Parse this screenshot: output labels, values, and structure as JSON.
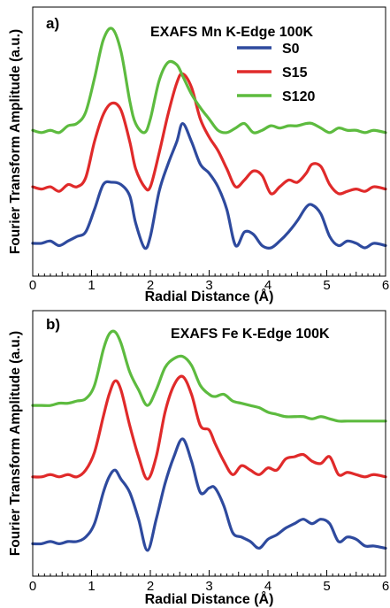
{
  "chart_data": [
    {
      "type": "line",
      "panel_label": "a)",
      "title": "EXAFS Mn K-Edge 100K",
      "xlabel": "Radial Distance (Å)",
      "ylabel": "Fourier Transform Amplitude (a.u.)",
      "xlim": [
        0,
        6
      ],
      "xticks": [
        "0",
        "1",
        "2",
        "3",
        "4",
        "5",
        "6"
      ],
      "ylim": [
        0,
        1
      ],
      "yticks_shown": false,
      "legend": "top-right",
      "colors": {
        "S0": "#2e4a9e",
        "S15": "#e02a2a",
        "S120": "#5dbb3f"
      },
      "series": [
        {
          "name": "S0",
          "x": [
            0,
            0.15,
            0.3,
            0.45,
            0.6,
            0.75,
            0.9,
            1.05,
            1.2,
            1.35,
            1.5,
            1.65,
            1.75,
            1.9,
            2.0,
            2.15,
            2.3,
            2.45,
            2.55,
            2.7,
            2.85,
            3.0,
            3.15,
            3.3,
            3.45,
            3.6,
            3.75,
            3.9,
            4.05,
            4.2,
            4.35,
            4.5,
            4.65,
            4.75,
            4.9,
            5.05,
            5.2,
            5.35,
            5.5,
            5.65,
            5.8,
            6.0
          ],
          "y": [
            0.05,
            0.05,
            0.06,
            0.04,
            0.06,
            0.08,
            0.1,
            0.2,
            0.31,
            0.32,
            0.31,
            0.26,
            0.14,
            0.03,
            0.08,
            0.28,
            0.4,
            0.5,
            0.58,
            0.5,
            0.4,
            0.36,
            0.3,
            0.2,
            0.04,
            0.1,
            0.09,
            0.04,
            0.03,
            0.06,
            0.1,
            0.15,
            0.21,
            0.22,
            0.18,
            0.08,
            0.04,
            0.06,
            0.05,
            0.03,
            0.05,
            0.04
          ]
        },
        {
          "name": "S15",
          "x": [
            0,
            0.15,
            0.3,
            0.45,
            0.6,
            0.75,
            0.9,
            1.05,
            1.2,
            1.35,
            1.5,
            1.65,
            1.75,
            1.9,
            2.0,
            2.15,
            2.3,
            2.45,
            2.55,
            2.7,
            2.85,
            3.0,
            3.15,
            3.3,
            3.45,
            3.6,
            3.75,
            3.9,
            4.05,
            4.2,
            4.35,
            4.5,
            4.65,
            4.75,
            4.9,
            5.05,
            5.2,
            5.35,
            5.5,
            5.65,
            5.8,
            6.0
          ],
          "y": [
            0.3,
            0.29,
            0.3,
            0.28,
            0.31,
            0.3,
            0.34,
            0.5,
            0.62,
            0.67,
            0.64,
            0.5,
            0.38,
            0.3,
            0.3,
            0.45,
            0.62,
            0.76,
            0.8,
            0.74,
            0.6,
            0.52,
            0.46,
            0.38,
            0.3,
            0.33,
            0.37,
            0.35,
            0.27,
            0.3,
            0.33,
            0.32,
            0.36,
            0.4,
            0.39,
            0.31,
            0.27,
            0.28,
            0.29,
            0.28,
            0.3,
            0.29
          ]
        },
        {
          "name": "S120",
          "x": [
            0,
            0.15,
            0.3,
            0.45,
            0.6,
            0.75,
            0.9,
            1.05,
            1.2,
            1.35,
            1.5,
            1.65,
            1.75,
            1.9,
            2.0,
            2.15,
            2.3,
            2.45,
            2.55,
            2.7,
            2.85,
            3.0,
            3.15,
            3.3,
            3.45,
            3.6,
            3.75,
            3.9,
            4.05,
            4.2,
            4.35,
            4.5,
            4.65,
            4.75,
            4.9,
            5.05,
            5.2,
            5.35,
            5.5,
            5.65,
            5.8,
            6.0
          ],
          "y": [
            0.55,
            0.54,
            0.55,
            0.54,
            0.57,
            0.58,
            0.63,
            0.78,
            0.95,
            1.0,
            0.9,
            0.68,
            0.58,
            0.54,
            0.6,
            0.77,
            0.85,
            0.84,
            0.79,
            0.71,
            0.65,
            0.6,
            0.55,
            0.54,
            0.56,
            0.58,
            0.54,
            0.55,
            0.57,
            0.56,
            0.57,
            0.57,
            0.58,
            0.58,
            0.56,
            0.54,
            0.56,
            0.55,
            0.55,
            0.54,
            0.55,
            0.54
          ]
        }
      ]
    },
    {
      "type": "line",
      "panel_label": "b)",
      "title": "EXAFS Fe K-Edge 100K",
      "xlabel": "Radial Distance (Å)",
      "ylabel": "Fourier Transform Amplitude (a.u.)",
      "xlim": [
        0,
        6
      ],
      "xticks": [
        "0",
        "1",
        "2",
        "3",
        "4",
        "5",
        "6"
      ],
      "ylim": [
        0,
        1
      ],
      "yticks_shown": false,
      "colors": {
        "S0": "#2e4a9e",
        "S15": "#e02a2a",
        "S120": "#5dbb3f"
      },
      "series": [
        {
          "name": "S0",
          "x": [
            0,
            0.15,
            0.3,
            0.45,
            0.6,
            0.75,
            0.9,
            1.05,
            1.2,
            1.3,
            1.4,
            1.5,
            1.65,
            1.8,
            1.95,
            2.1,
            2.25,
            2.4,
            2.55,
            2.7,
            2.85,
            3.0,
            3.1,
            3.25,
            3.4,
            3.55,
            3.7,
            3.85,
            4.0,
            4.15,
            4.3,
            4.45,
            4.6,
            4.75,
            4.9,
            5.05,
            5.2,
            5.35,
            5.5,
            5.65,
            5.8,
            6.0
          ],
          "y": [
            0.05,
            0.05,
            0.06,
            0.05,
            0.06,
            0.06,
            0.08,
            0.14,
            0.28,
            0.35,
            0.38,
            0.34,
            0.28,
            0.16,
            0.02,
            0.16,
            0.32,
            0.44,
            0.52,
            0.42,
            0.28,
            0.3,
            0.3,
            0.22,
            0.1,
            0.08,
            0.06,
            0.03,
            0.07,
            0.09,
            0.12,
            0.14,
            0.16,
            0.14,
            0.16,
            0.14,
            0.06,
            0.08,
            0.07,
            0.04,
            0.04,
            0.03
          ]
        },
        {
          "name": "S15",
          "x": [
            0,
            0.15,
            0.3,
            0.45,
            0.6,
            0.75,
            0.9,
            1.05,
            1.2,
            1.3,
            1.4,
            1.5,
            1.65,
            1.8,
            1.95,
            2.1,
            2.25,
            2.4,
            2.55,
            2.7,
            2.85,
            3.0,
            3.1,
            3.25,
            3.4,
            3.55,
            3.7,
            3.85,
            4.0,
            4.15,
            4.3,
            4.45,
            4.6,
            4.75,
            4.9,
            5.05,
            5.2,
            5.35,
            5.5,
            5.65,
            5.8,
            6.0
          ],
          "y": [
            0.35,
            0.35,
            0.36,
            0.35,
            0.36,
            0.35,
            0.38,
            0.46,
            0.62,
            0.72,
            0.78,
            0.74,
            0.58,
            0.44,
            0.34,
            0.44,
            0.64,
            0.76,
            0.8,
            0.72,
            0.58,
            0.56,
            0.5,
            0.42,
            0.36,
            0.4,
            0.38,
            0.36,
            0.39,
            0.38,
            0.43,
            0.44,
            0.45,
            0.42,
            0.41,
            0.44,
            0.36,
            0.37,
            0.36,
            0.35,
            0.36,
            0.35
          ]
        },
        {
          "name": "S120",
          "x": [
            0,
            0.15,
            0.3,
            0.45,
            0.6,
            0.75,
            0.9,
            1.05,
            1.2,
            1.3,
            1.4,
            1.5,
            1.65,
            1.8,
            1.95,
            2.1,
            2.25,
            2.4,
            2.55,
            2.7,
            2.85,
            3.0,
            3.1,
            3.25,
            3.4,
            3.55,
            3.7,
            3.85,
            4.0,
            4.15,
            4.3,
            4.45,
            4.6,
            4.75,
            4.9,
            5.05,
            5.2,
            5.35,
            5.5,
            5.65,
            5.8,
            6.0
          ],
          "y": [
            0.67,
            0.67,
            0.67,
            0.68,
            0.68,
            0.69,
            0.7,
            0.76,
            0.92,
            0.99,
            1.0,
            0.95,
            0.82,
            0.74,
            0.67,
            0.74,
            0.84,
            0.88,
            0.89,
            0.85,
            0.76,
            0.72,
            0.71,
            0.72,
            0.69,
            0.68,
            0.67,
            0.66,
            0.64,
            0.63,
            0.62,
            0.62,
            0.62,
            0.61,
            0.62,
            0.61,
            0.6,
            0.6,
            0.6,
            0.6,
            0.6,
            0.6
          ]
        }
      ]
    }
  ]
}
